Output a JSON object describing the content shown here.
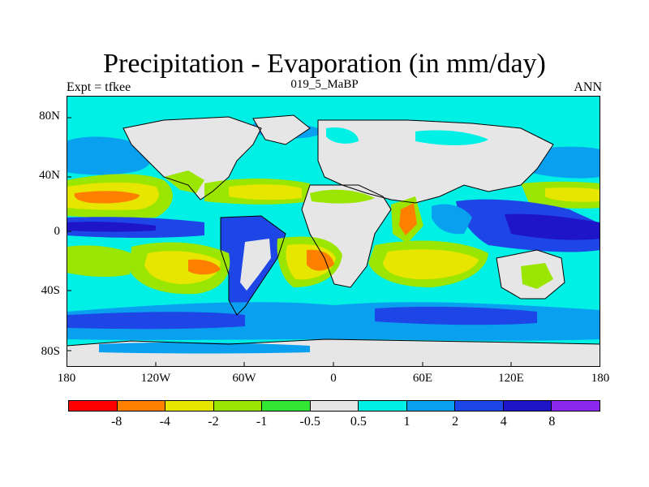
{
  "title": "Precipitation - Evaporation (in mm/day)",
  "subtitle_left": "Expt = tfkee",
  "subtitle_center": "019_5_MaBP",
  "subtitle_right": "ANN",
  "lat_ticks": [
    "80N",
    "40N",
    "0",
    "40S",
    "80S"
  ],
  "lon_ticks": [
    "180",
    "120W",
    "60W",
    "0",
    "60E",
    "120E",
    "180"
  ],
  "colorbar": {
    "colors": [
      "#ff0000",
      "#ff8000",
      "#e6e600",
      "#9be600",
      "#33e633",
      "#e6e6e6",
      "#00f0e6",
      "#0aa0f0",
      "#1e46e6",
      "#1e14c8",
      "#8c28f0"
    ],
    "labels": [
      "-8",
      "-4",
      "-2",
      "-1",
      "-0.5",
      "0.5",
      "1",
      "2",
      "4",
      "8"
    ]
  },
  "palette": {
    "land": "#e6e6e6",
    "ocean_wet_light": "#00f0e6",
    "ocean_wet_mid": "#0aa0f0",
    "ocean_wet_strong": "#1e46e6",
    "ocean_wet_max": "#1e14c8",
    "dry_light": "#33e633",
    "dry_mid": "#9be600",
    "dry_strong": "#e6e600",
    "dry_max": "#ff8000"
  }
}
